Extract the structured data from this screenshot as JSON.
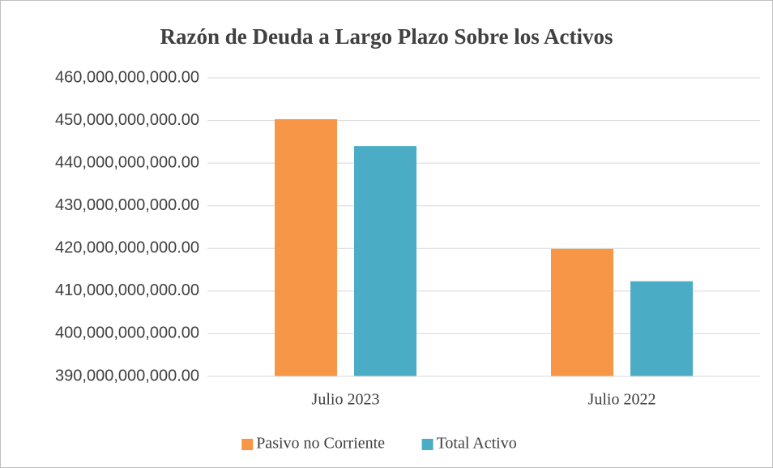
{
  "chart_data": {
    "type": "bar",
    "title": "Razón de Deuda a Largo Plazo Sobre los Activos",
    "categories": [
      "Julio 2023",
      "Julio 2022"
    ],
    "series": [
      {
        "name": "Pasivo no Corriente",
        "color": "#f79646",
        "values": [
          450300000000,
          419900000000
        ]
      },
      {
        "name": "Total Activo",
        "color": "#4bacc6",
        "values": [
          444000000000,
          412300000000
        ]
      }
    ],
    "ylim": [
      390000000000,
      460000000000
    ],
    "yticks": [
      {
        "value": 390000000000,
        "label": "390,000,000,000.00"
      },
      {
        "value": 400000000000,
        "label": "400,000,000,000.00"
      },
      {
        "value": 410000000000,
        "label": "410,000,000,000.00"
      },
      {
        "value": 420000000000,
        "label": "420,000,000,000.00"
      },
      {
        "value": 430000000000,
        "label": "430,000,000,000.00"
      },
      {
        "value": 440000000000,
        "label": "440,000,000,000.00"
      },
      {
        "value": 450000000000,
        "label": "450,000,000,000.00"
      },
      {
        "value": 460000000000,
        "label": "460,000,000,000.00"
      }
    ],
    "grid": true,
    "legend": "bottom"
  }
}
